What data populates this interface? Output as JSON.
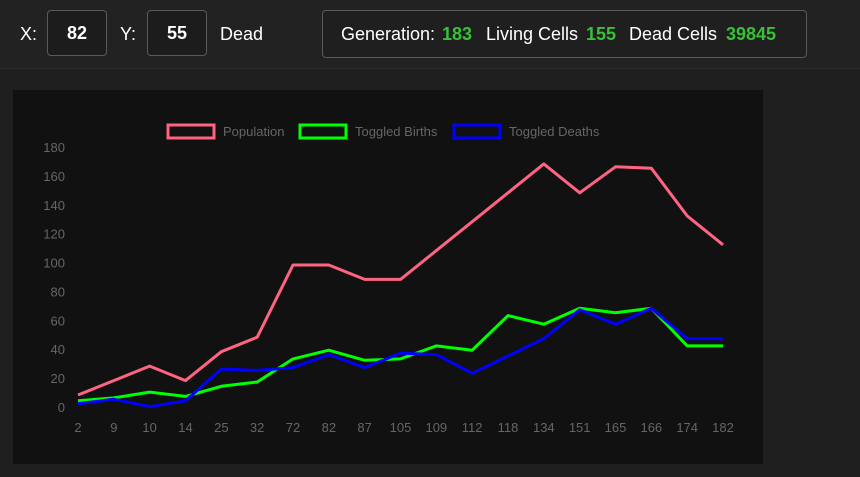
{
  "controls": {
    "x_label": "X:",
    "x_value": "82",
    "y_label": "Y:",
    "y_value": "55",
    "cell_state": "Dead"
  },
  "stats": {
    "generation_label": "Generation:",
    "generation_value": "183",
    "living_label": "Living Cells",
    "living_value": "155",
    "dead_label": "Dead Cells",
    "dead_value": "39845"
  },
  "colors": {
    "population": "#ff6384",
    "births": "#00ff00",
    "deaths": "#0000ff",
    "value_green": "#38c038"
  },
  "chart_data": {
    "type": "line",
    "categories": [
      "2",
      "9",
      "10",
      "14",
      "25",
      "32",
      "72",
      "82",
      "87",
      "105",
      "109",
      "112",
      "118",
      "134",
      "151",
      "165",
      "166",
      "174",
      "182"
    ],
    "ylim": [
      0,
      180
    ],
    "yticks": [
      0,
      20,
      40,
      60,
      80,
      100,
      120,
      140,
      160,
      180
    ],
    "legend_position": "top",
    "grid": false,
    "series": [
      {
        "name": "Population",
        "color": "#ff6384",
        "values": [
          9,
          19,
          29,
          19,
          39,
          49,
          99,
          99,
          89,
          89,
          109,
          129,
          149,
          169,
          149,
          167,
          166,
          133,
          113
        ]
      },
      {
        "name": "Toggled Births",
        "color": "#00ff00",
        "values": [
          5,
          7,
          11,
          8,
          15,
          18,
          34,
          40,
          33,
          34,
          43,
          40,
          64,
          58,
          69,
          66,
          69,
          43,
          43
        ]
      },
      {
        "name": "Toggled Deaths",
        "color": "#0000ff",
        "values": [
          3,
          6,
          1,
          5,
          27,
          26,
          28,
          37,
          28,
          38,
          37,
          24,
          36,
          48,
          68,
          58,
          69,
          48,
          48
        ]
      }
    ]
  }
}
